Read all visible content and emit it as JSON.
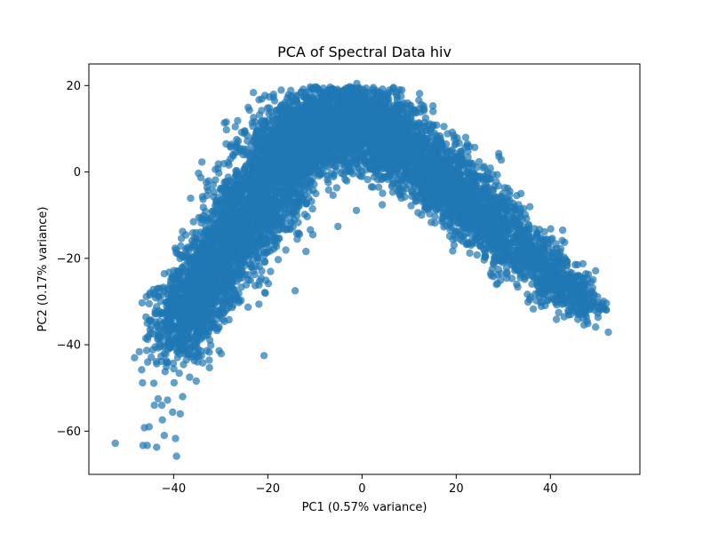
{
  "chart_data": {
    "type": "scatter",
    "title": "PCA of Spectral Data hiv",
    "xlabel": "PC1 (0.57% variance)",
    "ylabel": "PC2 (0.17% variance)",
    "xlim": [
      -58,
      59
    ],
    "ylim": [
      -70,
      25
    ],
    "xticks": [
      -40,
      -20,
      0,
      20,
      40
    ],
    "yticks": [
      -60,
      -40,
      -20,
      0,
      20
    ],
    "xtick_labels": [
      "−40",
      "−20",
      "0",
      "20",
      "40"
    ],
    "ytick_labels": [
      "−60",
      "−40",
      "−20",
      "0",
      "20"
    ],
    "grid": false,
    "color": "#1f77b4",
    "alpha": 0.7,
    "outliers": [
      [
        -52.4,
        -62.8
      ],
      [
        -48.3,
        -43.0
      ],
      [
        -46.5,
        -63.3
      ],
      [
        -45.6,
        -63.3
      ],
      [
        -46.2,
        -59.2
      ],
      [
        -45.2,
        -59.0
      ],
      [
        -43.6,
        -63.7
      ],
      [
        -42.0,
        -61.0
      ],
      [
        -39.4,
        -65.8
      ],
      [
        -39.6,
        -61.7
      ],
      [
        -42.4,
        -57.4
      ],
      [
        -40.2,
        -55.6
      ],
      [
        -38.6,
        -56.0
      ],
      [
        -38.1,
        -52.0
      ],
      [
        -41.3,
        -52.8
      ],
      [
        -42.5,
        -54.0
      ],
      [
        -44.1,
        -54.0
      ],
      [
        -46.6,
        -48.8
      ],
      [
        -46.8,
        -45.8
      ],
      [
        -45.5,
        -44.0
      ],
      [
        -44.2,
        -48.9
      ],
      [
        -43.3,
        -52.5
      ],
      [
        -41.8,
        -46.2
      ],
      [
        -39.9,
        -48.8
      ],
      [
        -38.8,
        -46.6
      ],
      [
        -36.6,
        -47.5
      ],
      [
        -35.2,
        -48.4
      ],
      [
        -37.3,
        -43.5
      ],
      [
        -33.8,
        -44.2
      ],
      [
        -32.4,
        -45.3
      ],
      [
        -47.3,
        -41.6
      ],
      [
        -45.9,
        -38.5
      ],
      [
        -43.9,
        -40.5
      ],
      [
        -43.6,
        -44.4
      ],
      [
        -20.8,
        -42.5
      ],
      [
        -14.2,
        -27.5
      ],
      [
        -11.9,
        -18.4
      ],
      [
        -17.8,
        -20.3
      ],
      [
        -21.9,
        -30.6
      ],
      [
        -24.2,
        -31.3
      ],
      [
        -30.5,
        -36.2
      ],
      [
        -32.1,
        -36.0
      ],
      [
        -46.7,
        -30.3
      ],
      [
        -45.2,
        -30.5
      ],
      [
        -44.3,
        -27.2
      ],
      [
        -36.4,
        -6.1
      ],
      [
        -34.0,
        2.3
      ],
      [
        -29.7,
        -3.8
      ],
      [
        -5.1,
        -12.6
      ],
      [
        -1.2,
        -8.9
      ],
      [
        2.3,
        -3.5
      ],
      [
        4.3,
        -7.6
      ],
      [
        13.6,
        -8.3
      ],
      [
        15.8,
        -8.8
      ],
      [
        19.9,
        -15.3
      ],
      [
        24.1,
        -14.6
      ],
      [
        30.5,
        -18.8
      ],
      [
        35.7,
        -20.2
      ],
      [
        39.4,
        -23.9
      ],
      [
        43.0,
        -26.1
      ],
      [
        45.6,
        -30.2
      ],
      [
        47.6,
        -31.5
      ],
      [
        49.6,
        -35.9
      ],
      [
        52.3,
        -37.1
      ],
      [
        13.5,
        12.5
      ],
      [
        -23.9,
        14.3
      ],
      [
        -1.1,
        20.5
      ],
      [
        -6.4,
        19.2
      ]
    ],
    "clouds": [
      {
        "x": -38.0,
        "y": -34.0,
        "sx": 3.4,
        "sy": 4.8,
        "n": 560
      },
      {
        "x": -33.0,
        "y": -25.0,
        "sx": 3.2,
        "sy": 5.0,
        "n": 620
      },
      {
        "x": -27.0,
        "y": -14.0,
        "sx": 3.8,
        "sy": 6.5,
        "n": 700
      },
      {
        "x": -20.5,
        "y": -3.0,
        "sx": 4.2,
        "sy": 6.8,
        "n": 760
      },
      {
        "x": -14.0,
        "y": 6.0,
        "sx": 4.5,
        "sy": 5.6,
        "n": 760
      },
      {
        "x": -7.0,
        "y": 11.0,
        "sx": 4.4,
        "sy": 5.0,
        "n": 700
      },
      {
        "x": 0.0,
        "y": 11.5,
        "sx": 4.2,
        "sy": 5.0,
        "n": 640
      },
      {
        "x": 7.0,
        "y": 7.5,
        "sx": 4.2,
        "sy": 4.6,
        "n": 580
      },
      {
        "x": 14.0,
        "y": 1.0,
        "sx": 4.2,
        "sy": 4.2,
        "n": 520
      },
      {
        "x": 21.0,
        "y": -5.5,
        "sx": 4.2,
        "sy": 3.8,
        "n": 460
      },
      {
        "x": 28.0,
        "y": -12.5,
        "sx": 4.0,
        "sy": 3.4,
        "n": 400
      },
      {
        "x": 35.0,
        "y": -19.5,
        "sx": 3.8,
        "sy": 3.0,
        "n": 320
      },
      {
        "x": 41.5,
        "y": -25.5,
        "sx": 3.4,
        "sy": 2.6,
        "n": 240
      },
      {
        "x": 46.5,
        "y": -30.5,
        "sx": 2.6,
        "sy": 2.2,
        "n": 120
      }
    ]
  }
}
